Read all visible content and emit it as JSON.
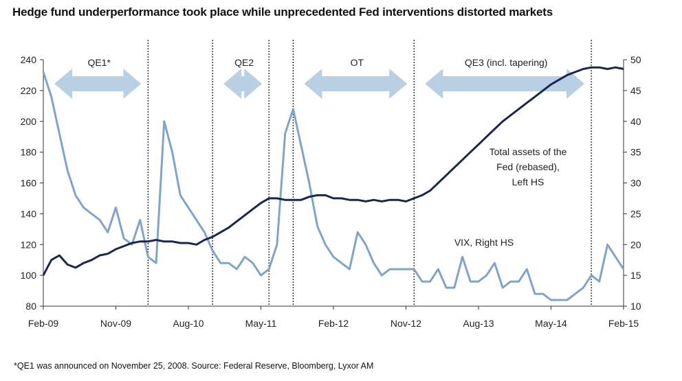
{
  "title": "Hedge fund underperformance took place while unprecedented Fed interventions distorted markets",
  "footnote": "*QE1 was announced on November 25, 2008. Source: Federal Reserve, Bloomberg, Lyxor AM",
  "chart_data": {
    "type": "line",
    "x_ticks": [
      "Feb-09",
      "Nov-09",
      "Aug-10",
      "May-11",
      "Feb-12",
      "Nov-12",
      "Aug-13",
      "May-14",
      "Feb-15"
    ],
    "y_left": {
      "min": 80,
      "max": 240,
      "ticks": [
        80,
        100,
        120,
        140,
        160,
        180,
        200,
        220,
        240
      ]
    },
    "y_right": {
      "min": 10,
      "max": 50,
      "ticks": [
        10,
        15,
        20,
        25,
        30,
        35,
        40,
        45,
        50
      ]
    },
    "grid": false,
    "colors": {
      "fed": "#1a2550",
      "vix": "#7fa3c9",
      "arrow": "#b9cfe3"
    },
    "periods": [
      {
        "label": "QE1*",
        "start": "2009-02",
        "end": "2010-03"
      },
      {
        "label": "QE2",
        "start": "2010-11",
        "end": "2011-06"
      },
      {
        "label": "OT",
        "start": "2011-09",
        "end": "2012-12"
      },
      {
        "label": "QE3 (incl. tapering)",
        "start": "2012-12",
        "end": "2014-10"
      }
    ],
    "series": [
      {
        "name": "Total assets of the Fed (rebased), Left HS",
        "axis": "left",
        "x": [
          "2009-02",
          "2009-03",
          "2009-04",
          "2009-05",
          "2009-06",
          "2009-07",
          "2009-08",
          "2009-09",
          "2009-10",
          "2009-11",
          "2009-12",
          "2010-01",
          "2010-02",
          "2010-03",
          "2010-04",
          "2010-05",
          "2010-06",
          "2010-07",
          "2010-08",
          "2010-09",
          "2010-10",
          "2010-11",
          "2010-12",
          "2011-01",
          "2011-02",
          "2011-03",
          "2011-04",
          "2011-05",
          "2011-06",
          "2011-07",
          "2011-08",
          "2011-09",
          "2011-10",
          "2011-11",
          "2011-12",
          "2012-01",
          "2012-02",
          "2012-03",
          "2012-04",
          "2012-05",
          "2012-06",
          "2012-07",
          "2012-08",
          "2012-09",
          "2012-10",
          "2012-11",
          "2012-12",
          "2013-01",
          "2013-02",
          "2013-03",
          "2013-04",
          "2013-05",
          "2013-06",
          "2013-07",
          "2013-08",
          "2013-09",
          "2013-10",
          "2013-11",
          "2013-12",
          "2014-01",
          "2014-02",
          "2014-03",
          "2014-04",
          "2014-05",
          "2014-06",
          "2014-07",
          "2014-08",
          "2014-09",
          "2014-10",
          "2014-11",
          "2014-12",
          "2015-01",
          "2015-02"
        ],
        "values": [
          100,
          110,
          113,
          107,
          105,
          108,
          110,
          113,
          114,
          117,
          119,
          121,
          122,
          122,
          123,
          122,
          122,
          121,
          121,
          120,
          123,
          125,
          128,
          131,
          135,
          139,
          143,
          147,
          150,
          150,
          149,
          149,
          149,
          151,
          152,
          152,
          150,
          150,
          149,
          149,
          148,
          149,
          148,
          149,
          149,
          148,
          150,
          152,
          155,
          160,
          165,
          170,
          175,
          180,
          185,
          190,
          195,
          200,
          204,
          208,
          212,
          216,
          220,
          224,
          227,
          230,
          232,
          234,
          235,
          235,
          234,
          235,
          234
        ]
      },
      {
        "name": "VIX, Right HS",
        "axis": "right",
        "x": [
          "2009-02",
          "2009-03",
          "2009-04",
          "2009-05",
          "2009-06",
          "2009-07",
          "2009-08",
          "2009-09",
          "2009-10",
          "2009-11",
          "2009-12",
          "2010-01",
          "2010-02",
          "2010-03",
          "2010-04",
          "2010-05",
          "2010-06",
          "2010-07",
          "2010-08",
          "2010-09",
          "2010-10",
          "2010-11",
          "2010-12",
          "2011-01",
          "2011-02",
          "2011-03",
          "2011-04",
          "2011-05",
          "2011-06",
          "2011-07",
          "2011-08",
          "2011-09",
          "2011-10",
          "2011-11",
          "2011-12",
          "2012-01",
          "2012-02",
          "2012-03",
          "2012-04",
          "2012-05",
          "2012-06",
          "2012-07",
          "2012-08",
          "2012-09",
          "2012-10",
          "2012-11",
          "2012-12",
          "2013-01",
          "2013-02",
          "2013-03",
          "2013-04",
          "2013-05",
          "2013-06",
          "2013-07",
          "2013-08",
          "2013-09",
          "2013-10",
          "2013-11",
          "2013-12",
          "2014-01",
          "2014-02",
          "2014-03",
          "2014-04",
          "2014-05",
          "2014-06",
          "2014-07",
          "2014-08",
          "2014-09",
          "2014-10",
          "2014-11",
          "2014-12",
          "2015-01",
          "2015-02"
        ],
        "values": [
          48,
          44,
          38,
          32,
          28,
          26,
          25,
          24,
          22,
          26,
          21,
          20,
          24,
          18,
          17,
          40,
          35,
          28,
          26,
          24,
          22,
          19,
          17,
          17,
          16,
          18,
          17,
          15,
          16,
          20,
          38,
          42,
          36,
          30,
          23,
          20,
          18,
          17,
          16,
          22,
          20,
          17,
          15,
          16,
          16,
          16,
          16,
          14,
          14,
          16,
          13,
          13,
          18,
          14,
          14,
          15,
          17,
          13,
          14,
          14,
          16,
          12,
          12,
          11,
          11,
          11,
          12,
          13,
          15,
          14,
          20,
          18,
          16
        ]
      }
    ]
  }
}
